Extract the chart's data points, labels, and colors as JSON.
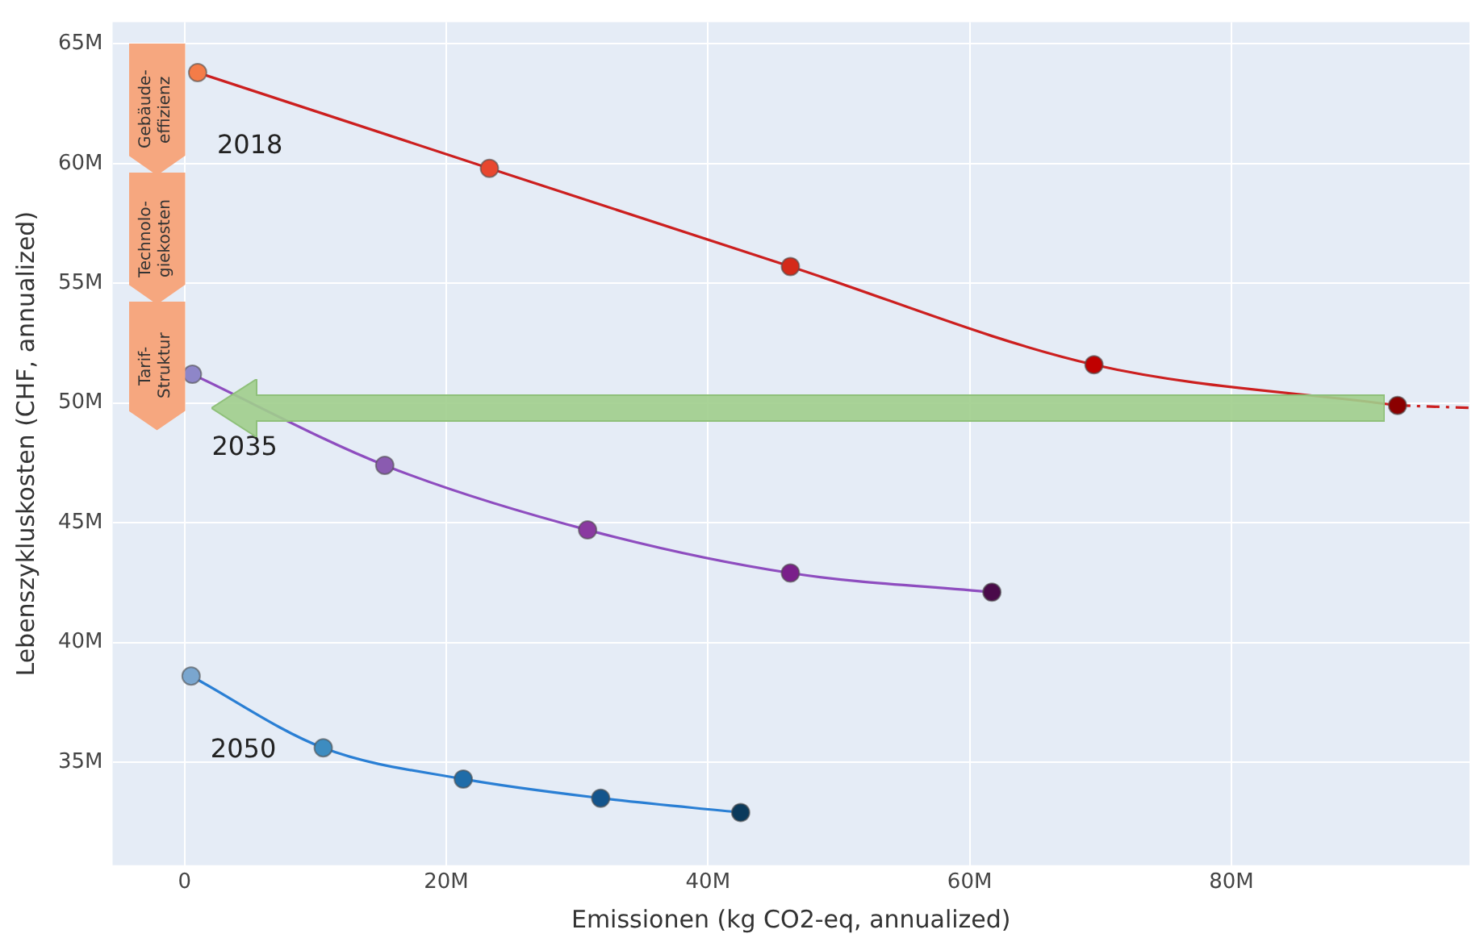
{
  "chart_data": {
    "type": "line",
    "xlabel": "Emissionen (kg CO2-eq, annualized)",
    "ylabel": "Lebenszykluskosten (CHF, annualized)",
    "xlim": [
      -5.5,
      98.2
    ],
    "xticks": [
      0,
      {
        "value": 20,
        "label": "20M"
      },
      {
        "value": 40,
        "label": "40M"
      },
      {
        "value": 60,
        "label": "60M"
      },
      {
        "value": 80,
        "label": "80M"
      }
    ],
    "ylim": [
      30.7,
      65.9
    ],
    "yticks": [
      {
        "value": 35,
        "label": "35M"
      },
      {
        "value": 40,
        "label": "40M"
      },
      {
        "value": 45,
        "label": "45M"
      },
      {
        "value": 50,
        "label": "50M"
      },
      {
        "value": 55,
        "label": "55M"
      },
      {
        "value": 60,
        "label": "60M"
      },
      {
        "value": 65,
        "label": "65M"
      }
    ],
    "grid": true,
    "legend": false,
    "marker": "circle",
    "line_style": "solid",
    "annotations": [
      "Gebäude-effizienz",
      "Technolo-giekosten",
      "Tarif-Struktur"
    ],
    "series": [
      {
        "name": "2018",
        "color": "#cc1f1f",
        "x": [
          1.0,
          23.3,
          46.3,
          69.5,
          92.7
        ],
        "values": [
          63.8,
          59.8,
          55.7,
          51.6,
          49.9
        ],
        "colors": [
          "#f47c48",
          "#e8472f",
          "#d42a1a",
          "#c00000",
          "#8b0000"
        ]
      },
      {
        "color": "#cc1f1f",
        "line_style": "dashed",
        "marker": "none",
        "x": [
          92.7,
          98.2
        ],
        "values": [
          49.9,
          49.8
        ]
      },
      {
        "name": "2035",
        "color": "#8e4dbf",
        "x": [
          0.6,
          15.3,
          30.8,
          46.3,
          61.7
        ],
        "values": [
          51.2,
          47.4,
          44.7,
          42.9,
          42.1
        ],
        "colors": [
          "#8e86c8",
          "#8a5bb0",
          "#8a3aa0",
          "#7a1f8a",
          "#4a0a4a"
        ]
      },
      {
        "name": "2050",
        "color": "#2a7fd4",
        "x": [
          0.5,
          10.6,
          21.3,
          31.8,
          42.5
        ],
        "values": [
          38.6,
          35.6,
          34.3,
          33.5,
          32.9
        ],
        "colors": [
          "#7aa6cf",
          "#3d8cc0",
          "#1f6ca8",
          "#13548c",
          "#0a3a5c"
        ]
      }
    ]
  }
}
